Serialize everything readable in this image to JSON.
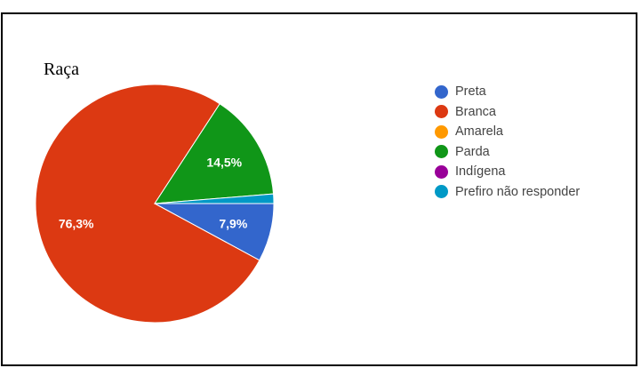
{
  "chart_data": {
    "type": "pie",
    "title": "Raça",
    "legend_position": "right",
    "slices": [
      {
        "label": "Preta",
        "value": 7.9,
        "value_label": "7,9%",
        "color": "#3366cc"
      },
      {
        "label": "Branca",
        "value": 76.3,
        "value_label": "76,3%",
        "color": "#dc3912"
      },
      {
        "label": "Amarela",
        "value": 0,
        "value_label": "",
        "color": "#ff9900"
      },
      {
        "label": "Parda",
        "value": 14.5,
        "value_label": "14,5%",
        "color": "#109618"
      },
      {
        "label": "Indígena",
        "value": 0,
        "value_label": "",
        "color": "#990099"
      },
      {
        "label": "Prefiro não responder",
        "value": 1.3,
        "value_label": "",
        "color": "#0099c6"
      }
    ]
  }
}
